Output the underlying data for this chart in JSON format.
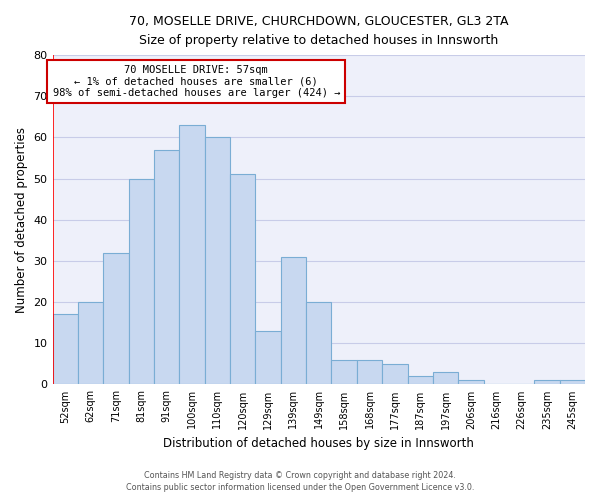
{
  "title1": "70, MOSELLE DRIVE, CHURCHDOWN, GLOUCESTER, GL3 2TA",
  "title2": "Size of property relative to detached houses in Innsworth",
  "xlabel": "Distribution of detached houses by size in Innsworth",
  "ylabel": "Number of detached properties",
  "categories": [
    "52sqm",
    "62sqm",
    "71sqm",
    "81sqm",
    "91sqm",
    "100sqm",
    "110sqm",
    "120sqm",
    "129sqm",
    "139sqm",
    "149sqm",
    "158sqm",
    "168sqm",
    "177sqm",
    "187sqm",
    "197sqm",
    "206sqm",
    "216sqm",
    "226sqm",
    "235sqm",
    "245sqm"
  ],
  "values": [
    17,
    20,
    32,
    50,
    57,
    63,
    60,
    51,
    13,
    31,
    20,
    6,
    6,
    5,
    2,
    3,
    1,
    0,
    0,
    1,
    1
  ],
  "bar_color": "#c8d8f0",
  "bar_edge_color": "#7aadd4",
  "highlight_label": "70 MOSELLE DRIVE: 57sqm",
  "annotation_line1": "← 1% of detached houses are smaller (6)",
  "annotation_line2": "98% of semi-detached houses are larger (424) →",
  "annotation_box_color": "#ffffff",
  "annotation_box_edge": "#cc0000",
  "ylim": [
    0,
    80
  ],
  "yticks": [
    0,
    10,
    20,
    30,
    40,
    50,
    60,
    70,
    80
  ],
  "grid_color": "#c8cce8",
  "background_color": "#eef0fa",
  "footer1": "Contains HM Land Registry data © Crown copyright and database right 2024.",
  "footer2": "Contains public sector information licensed under the Open Government Licence v3.0."
}
